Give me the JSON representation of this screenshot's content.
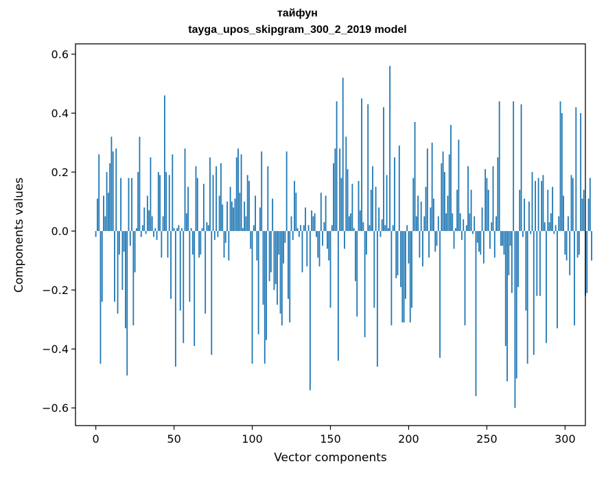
{
  "chart_data": {
    "type": "bar",
    "title": "тайфун",
    "subtitle": "tayga_upos_skipgram_300_2_2019 model",
    "xlabel": "Vector components",
    "ylabel": "Components values",
    "xlim": [
      -13,
      313
    ],
    "ylim": [
      -0.66,
      0.635
    ],
    "xticks": [
      0,
      50,
      100,
      150,
      200,
      250,
      300
    ],
    "xtick_labels": [
      "0",
      "50",
      "100",
      "150",
      "200",
      "250",
      "300"
    ],
    "yticks": [
      -0.6,
      -0.4,
      -0.2,
      0.0,
      0.2,
      0.4,
      0.6
    ],
    "ytick_labels": [
      "−0.6",
      "−0.4",
      "−0.2",
      "0.0",
      "0.2",
      "0.4",
      "0.6"
    ],
    "grid": false,
    "bar_color": "#1f77b4",
    "values": [
      -0.02,
      0.11,
      0.26,
      -0.45,
      -0.24,
      0.12,
      0.05,
      0.2,
      0.13,
      0.23,
      0.32,
      0.27,
      -0.24,
      0.28,
      -0.28,
      -0.08,
      0.18,
      -0.2,
      -0.07,
      -0.33,
      -0.49,
      0.18,
      -0.05,
      0.18,
      -0.32,
      -0.14,
      0.01,
      0.2,
      0.32,
      -0.02,
      0.02,
      0.08,
      -0.01,
      0.12,
      0.07,
      0.25,
      0.05,
      -0.02,
      0.01,
      -0.03,
      0.2,
      0.19,
      -0.09,
      0.05,
      0.46,
      0.2,
      -0.09,
      0.19,
      -0.23,
      0.26,
      0.01,
      -0.46,
      0.01,
      0.02,
      -0.27,
      0.01,
      -0.38,
      0.28,
      0.06,
      0.15,
      -0.24,
      0.01,
      -0.08,
      -0.39,
      0.22,
      0.18,
      -0.09,
      -0.08,
      0.01,
      0.16,
      -0.28,
      0.03,
      0.02,
      0.25,
      -0.42,
      0.19,
      -0.03,
      0.22,
      -0.02,
      0.12,
      0.23,
      0.09,
      -0.09,
      -0.04,
      0.1,
      -0.1,
      0.15,
      0.1,
      0.08,
      0.11,
      0.25,
      0.28,
      0.13,
      0.26,
      0.01,
      0.1,
      0.05,
      0.19,
      0.17,
      -0.06,
      -0.45,
      0.02,
      0.12,
      -0.1,
      -0.35,
      0.08,
      0.27,
      -0.25,
      -0.45,
      -0.37,
      0.22,
      -0.17,
      -0.14,
      0.11,
      -0.2,
      -0.18,
      -0.25,
      -0.08,
      -0.28,
      -0.32,
      -0.11,
      -0.04,
      0.27,
      -0.23,
      -0.31,
      0.05,
      -0.03,
      0.17,
      0.13,
      0.01,
      -0.02,
      0.02,
      -0.14,
      0.02,
      0.08,
      -0.12,
      0.02,
      -0.54,
      0.07,
      0.05,
      0.06,
      -0.02,
      -0.09,
      -0.12,
      0.13,
      -0.05,
      0.03,
      0.12,
      -0.06,
      -0.1,
      -0.26,
      0.02,
      0.23,
      0.28,
      0.44,
      -0.44,
      0.28,
      0.18,
      0.52,
      -0.06,
      0.32,
      0.21,
      0.05,
      0.06,
      0.16,
      0.01,
      -0.17,
      -0.29,
      0.17,
      0.07,
      0.45,
      0.03,
      -0.36,
      -0.08,
      0.43,
      0.02,
      0.14,
      0.22,
      -0.26,
      0.15,
      -0.46,
      0.08,
      -0.02,
      0.04,
      0.42,
      0.02,
      0.19,
      0.01,
      0.56,
      -0.32,
      0.02,
      0.25,
      -0.16,
      -0.15,
      0.29,
      -0.19,
      -0.31,
      -0.31,
      -0.23,
      0.02,
      -0.11,
      -0.31,
      -0.26,
      0.18,
      0.37,
      0.05,
      0.12,
      -0.09,
      0.1,
      -0.12,
      0.05,
      0.15,
      0.28,
      -0.09,
      0.08,
      0.3,
      0.11,
      -0.07,
      -0.05,
      0.05,
      -0.43,
      0.23,
      0.27,
      0.2,
      0.06,
      0.12,
      0.26,
      0.36,
      0.06,
      -0.06,
      0.01,
      0.14,
      0.31,
      0.06,
      -0.03,
      0.04,
      -0.32,
      0.02,
      0.22,
      0.06,
      0.14,
      -0.01,
      0.05,
      -0.56,
      -0.04,
      -0.07,
      -0.08,
      0.08,
      -0.11,
      0.21,
      0.18,
      0.14,
      -0.06,
      0.03,
      0.22,
      -0.09,
      0.05,
      0.25,
      0.44,
      -0.05,
      -0.05,
      -0.08,
      -0.39,
      -0.51,
      -0.15,
      -0.05,
      -0.21,
      0.44,
      -0.6,
      -0.5,
      -0.19,
      0.14,
      0.43,
      -0.02,
      0.11,
      -0.27,
      -0.45,
      0.1,
      -0.01,
      0.2,
      -0.42,
      0.17,
      -0.22,
      0.18,
      -0.22,
      0.17,
      0.19,
      0.03,
      -0.38,
      0.14,
      0.03,
      0.06,
      0.15,
      -0.01,
      0.02,
      -0.33,
      0.05,
      0.44,
      0.4,
      0.12,
      -0.08,
      -0.1,
      0.05,
      -0.15,
      0.19,
      0.18,
      -0.32,
      0.42,
      -0.09,
      -0.08,
      0.4,
      0.11,
      0.14,
      -0.22,
      -0.21,
      0.11,
      0.18,
      -0.1
    ]
  }
}
